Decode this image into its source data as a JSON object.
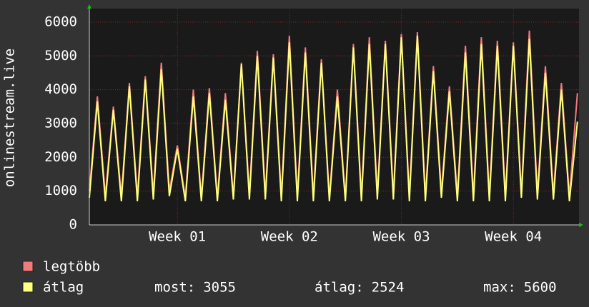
{
  "chart_data": {
    "type": "line",
    "y_label": "onlinestream.live",
    "x": [
      0,
      0.5,
      1,
      1.5,
      2,
      2.5,
      3,
      3.5,
      4,
      4.5,
      5,
      5.5,
      6,
      6.5,
      7,
      7.5,
      8,
      8.5,
      9,
      9.5,
      10,
      10.5,
      11,
      11.5,
      12,
      12.5,
      13,
      13.5,
      14,
      14.5,
      15,
      15.5,
      16,
      16.5,
      17,
      17.5,
      18,
      18.5,
      19,
      19.5,
      20,
      20.5,
      21,
      21.5,
      22,
      22.5,
      23,
      23.5,
      24,
      24.5,
      25,
      25.5,
      26,
      26.5,
      27,
      27.5,
      28,
      28.5,
      29,
      29.5,
      30,
      30.5
    ],
    "xlim": [
      0,
      30.6
    ],
    "xticks": [
      {
        "value": 5.5,
        "label": "Week 01"
      },
      {
        "value": 12.5,
        "label": "Week 02"
      },
      {
        "value": 19.5,
        "label": "Week 03"
      },
      {
        "value": 26.5,
        "label": "Week 04"
      }
    ],
    "ylim": [
      0,
      6400
    ],
    "yticks": [
      0,
      1000,
      2000,
      3000,
      4000,
      5000,
      6000
    ],
    "grid": true,
    "series": [
      {
        "name": "legtöbb",
        "color": "#f47a7a",
        "values": [
          1000,
          3800,
          850,
          3500,
          850,
          4200,
          850,
          4400,
          900,
          4800,
          1000,
          2350,
          800,
          4000,
          800,
          4050,
          800,
          3900,
          850,
          4800,
          900,
          5150,
          900,
          5050,
          850,
          5600,
          850,
          5250,
          850,
          4900,
          800,
          4000,
          800,
          5350,
          850,
          5550,
          900,
          5450,
          900,
          5650,
          850,
          5700,
          850,
          4700,
          950,
          4100,
          850,
          5300,
          850,
          5550,
          850,
          5450,
          850,
          5400,
          950,
          5750,
          900,
          4700,
          900,
          4200,
          850,
          3900
        ]
      },
      {
        "name": "átlag",
        "color": "#ffff80",
        "values": [
          800,
          3650,
          700,
          3400,
          700,
          4100,
          700,
          4300,
          750,
          4600,
          850,
          2250,
          700,
          3800,
          700,
          3900,
          700,
          3700,
          750,
          4750,
          750,
          5000,
          750,
          4950,
          700,
          5400,
          700,
          5100,
          700,
          4800,
          700,
          3800,
          700,
          5250,
          700,
          5350,
          750,
          5350,
          750,
          5550,
          700,
          5600,
          700,
          4550,
          800,
          3950,
          700,
          5100,
          700,
          5350,
          700,
          5300,
          700,
          5300,
          800,
          5500,
          750,
          4500,
          750,
          4000,
          700,
          3055
        ]
      }
    ],
    "summary": [
      {
        "label": "most:",
        "value": 3055
      },
      {
        "label": "átlag:",
        "value": 2524
      },
      {
        "label": "max:",
        "value": 5600
      }
    ]
  }
}
